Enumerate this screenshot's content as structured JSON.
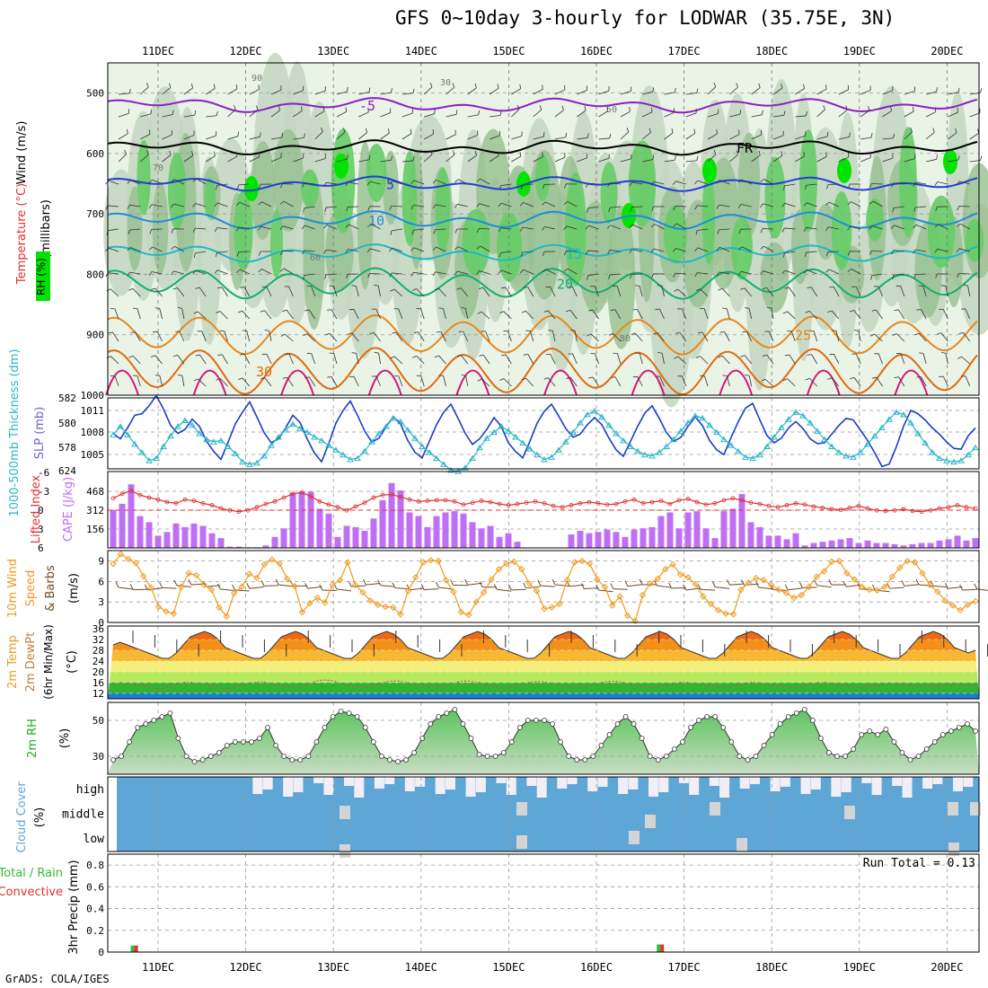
{
  "title": "GFS 0~10day 3-hourly for LODWAR (35.75E, 3N)",
  "credit": "GrADS: COLA/IGES",
  "dates": [
    "11DEC",
    "12DEC",
    "13DEC",
    "14DEC",
    "15DEC",
    "16DEC",
    "17DEC",
    "18DEC",
    "19DEC",
    "20DEC"
  ],
  "colors": {
    "rh_light": "#e9f3e6",
    "rh_mid": "#c3d6bf",
    "rh_dark": "#97bf90",
    "rh_green": "#66cc66",
    "rh_bright": "#00e400",
    "slp": "#1a3ec8",
    "thickness": "#2ab6c8",
    "cape": "#bf6ff5",
    "lifted_index": "#e03030",
    "wind_speed": "#ef9a1e",
    "wind_barb": "#6e4b28",
    "cloud": "#5ea6d6",
    "cloud_clear": "#f1eef6",
    "cloud_gray": "#d4d4d4",
    "precip_rain": "#33bb33",
    "precip_conv": "#e03030"
  },
  "chart_data": [
    {
      "type": "contour",
      "panel": "upper_air",
      "ylabel": "(millibars)",
      "variables_label": {
        "wind": "Wind (m/s)",
        "temp": "Temperature (°C)",
        "rh": "RH (%)"
      },
      "yaxis": {
        "labels": [
          "500",
          "600",
          "700",
          "800",
          "900",
          "1000"
        ],
        "range": [
          450,
          1000
        ]
      },
      "temp_contours": [
        {
          "label": "-5",
          "level_mb": 520,
          "color": "#8e1ec4"
        },
        {
          "label": "FR",
          "level_mb": 590,
          "color": "#000000"
        },
        {
          "label": "5",
          "level_mb": 650,
          "color": "#1f3fd8"
        },
        {
          "label": "10",
          "level_mb": 710,
          "color": "#1c8ed8"
        },
        {
          "label": "15",
          "level_mb": 765,
          "color": "#1fb8c8"
        },
        {
          "label": "20",
          "level_mb": 815,
          "color": "#10b070"
        },
        {
          "label": "25",
          "level_mb": 900,
          "color": "#e8881a"
        },
        {
          "label": "30",
          "level_mb": 960,
          "color": "#e06a10"
        }
      ],
      "rh_labels": [
        "70",
        "50",
        "60",
        "30",
        "80",
        "90"
      ]
    },
    {
      "type": "line",
      "panel": "slp_thickness",
      "ylabel_left": "1000-500mb Thickness (dm)",
      "ylabel_right": "SLP (mb)",
      "left_ticks": [
        "582",
        "580",
        "578"
      ],
      "right_ticks": [
        "1011",
        "1008",
        "1005"
      ],
      "slp_range": [
        1003,
        1012
      ],
      "slp": [
        1007.5,
        1006.8,
        1008.2,
        1009.8,
        1010.0,
        1011.0,
        1012.3,
        1010.6,
        1008.5,
        1007.5,
        1008.0,
        1009.3,
        1008.4,
        1006.5,
        1005.2,
        1004.2,
        1006.4,
        1008.7,
        1010.2,
        1011.5,
        1009.6,
        1007.6,
        1006.3,
        1006.8,
        1008.2,
        1009.8,
        1008.9,
        1006.8,
        1005.0,
        1003.9,
        1006.2,
        1008.8,
        1010.4,
        1011.6,
        1009.8,
        1007.8,
        1006.4,
        1006.9,
        1008.4,
        1009.6,
        1008.7,
        1006.6,
        1005.1,
        1004.4,
        1006.5,
        1008.6,
        1010.2,
        1011.2,
        1009.4,
        1007.5,
        1006.1,
        1006.8,
        1008.0,
        1009.5,
        1008.4,
        1006.3,
        1005.2,
        1004.4,
        1006.5,
        1008.8,
        1010.3,
        1011.2,
        1009.7,
        1008.1,
        1007.0,
        1007.4,
        1008.6,
        1009.5,
        1008.6,
        1006.9,
        1005.4,
        1004.6,
        1006.5,
        1008.4,
        1010.1,
        1011.0,
        1009.4,
        1007.6,
        1006.5,
        1007.0,
        1008.4,
        1009.6,
        1008.5,
        1006.6,
        1005.4,
        1004.8,
        1007.0,
        1009.0,
        1010.7,
        1011.3,
        1009.2,
        1007.2,
        1006.3,
        1006.9,
        1008.2,
        1009.0,
        1008.1,
        1006.8,
        1006.2,
        1006.3,
        1007.4,
        1008.5,
        1009.4,
        1009.2,
        1007.9,
        1006.6,
        1005.0,
        1003.3,
        1003.6,
        1005.8,
        1008.4,
        1010.4,
        1010.0,
        1009.2,
        1008.2,
        1007.4,
        1006.4,
        1005.6,
        1005.5,
        1007.2,
        1008.2
      ],
      "thickness_range": [
        577,
        583
      ],
      "thickness": [
        579.9,
        580.6,
        579.9,
        579.1,
        578.4,
        577.7,
        577.9,
        578.9,
        579.8,
        580.6,
        581.1,
        580.7,
        580.0,
        579.5,
        579.3,
        579.4,
        578.9,
        578.3,
        577.6,
        577.4,
        577.5,
        578.1,
        579.0,
        579.7,
        580.3,
        580.8,
        580.4,
        580.1,
        579.7,
        579.4,
        579.0,
        578.6,
        578.2,
        577.8,
        577.9,
        578.5,
        579.3,
        580.0,
        580.6,
        581.3,
        581.0,
        580.3,
        579.6,
        578.9,
        578.4,
        577.9,
        577.4,
        576.9,
        576.8,
        577.1,
        577.9,
        578.8,
        579.6,
        580.1,
        580.6,
        580.2,
        579.7,
        579.2,
        578.7,
        578.2,
        577.8,
        578.0,
        578.6,
        579.3,
        580.1,
        580.9,
        581.6,
        581.9,
        581.4,
        580.7,
        580.0,
        579.4,
        578.9,
        578.5,
        578.2,
        578.1,
        578.4,
        578.9,
        579.5,
        580.2,
        580.9,
        581.5,
        581.3,
        580.7,
        580.1,
        579.5,
        579.0,
        578.5,
        578.0,
        577.9,
        578.2,
        578.9,
        579.7,
        580.5,
        581.2,
        581.8,
        581.5,
        580.9,
        580.2,
        579.5,
        578.9,
        578.4,
        578.1,
        578.0,
        578.4,
        579.1,
        579.8,
        580.5,
        581.2,
        581.8,
        581.6,
        580.9,
        580.0,
        579.2,
        578.4,
        577.9,
        577.7,
        577.6,
        577.7,
        578.2,
        578.8
      ]
    },
    {
      "type": "bar",
      "panel": "cape_li",
      "ylabel_left": "Lifted Index",
      "ylabel_right": "CAPE (J/kg)",
      "left_ticks": [
        "-6",
        "-3",
        "0",
        "3",
        "6"
      ],
      "right_ticks": [
        "624",
        "468",
        "312",
        "156"
      ],
      "cape_range": [
        0,
        624
      ],
      "cape": [
        312,
        360,
        520,
        260,
        210,
        100,
        130,
        200,
        170,
        200,
        180,
        120,
        80,
        10,
        10,
        5,
        5,
        20,
        90,
        160,
        450,
        460,
        460,
        320,
        280,
        90,
        180,
        170,
        140,
        240,
        390,
        530,
        470,
        290,
        260,
        170,
        260,
        290,
        300,
        280,
        210,
        160,
        180,
        90,
        120,
        50,
        0,
        0,
        0,
        0,
        0,
        110,
        140,
        120,
        130,
        150,
        130,
        90,
        150,
        160,
        170,
        260,
        290,
        160,
        290,
        300,
        160,
        80,
        300,
        320,
        440,
        210,
        170,
        100,
        100,
        70,
        120,
        20,
        40,
        50,
        60,
        70,
        80,
        40,
        60,
        40,
        40,
        30,
        20,
        30,
        40,
        40,
        60,
        70,
        100,
        60,
        80
      ],
      "li_range": [
        -6,
        6
      ],
      "lifted_index": [
        -1.8,
        -2.5,
        -3.0,
        -2.3,
        -1.9,
        -1.6,
        -1.2,
        -1.0,
        -1.6,
        -1.4,
        -1.0,
        -0.7,
        -0.2,
        0.1,
        0.3,
        0.1,
        -0.4,
        -0.9,
        -1.3,
        -1.9,
        -2.5,
        -2.7,
        -2.1,
        -1.3,
        -0.8,
        -0.4,
        0.1,
        -0.5,
        -1.1,
        -1.9,
        -2.3,
        -2.4,
        -2.0,
        -1.6,
        -1.3,
        -1.4,
        -1.5,
        -1.5,
        -1.3,
        -0.8,
        -1.1,
        -1.4,
        -1.2,
        -0.9,
        -0.7,
        -0.9,
        -1.1,
        -1.3,
        -1.0,
        -0.6,
        -0.4,
        -0.7,
        -1.0,
        -1.2,
        -1.0,
        -0.8,
        -0.9,
        -1.3,
        -1.6,
        -1.0,
        -1.2,
        -1.4,
        -0.9,
        -1.5,
        -1.7,
        -1.2,
        -0.8,
        -1.0,
        -1.5,
        -1.8,
        -1.5,
        -1.1,
        -0.9,
        -0.6,
        -0.4,
        -0.7,
        -1.0,
        -0.8,
        -0.5,
        -0.3,
        -0.1,
        0.0,
        -0.3,
        -0.6,
        -0.2,
        0.1,
        0.2,
        0.1,
        -0.1,
        0.2,
        0.3,
        0.1,
        -0.2,
        -0.4,
        -0.7,
        -0.4,
        -0.2
      ]
    },
    {
      "type": "line",
      "panel": "wind10m",
      "ylabel": "10m Wind Speed & Barbs (m/s)",
      "ticks": [
        "9",
        "6",
        "3",
        "0"
      ],
      "range": [
        0,
        10
      ],
      "speed": [
        8.6,
        10.0,
        9.3,
        8.7,
        6.8,
        5.1,
        2.3,
        1.6,
        1.3,
        5.2,
        7.2,
        6.9,
        5.5,
        4.8,
        2.2,
        0.9,
        4.3,
        5.2,
        7.1,
        6.5,
        8.5,
        9.2,
        8.6,
        6.4,
        5.3,
        1.5,
        2.8,
        3.6,
        2.9,
        5.5,
        6.2,
        8.8,
        5.5,
        4.4,
        3.2,
        2.6,
        2.3,
        2.2,
        1.2,
        4.6,
        6.6,
        8.8,
        9.1,
        9.0,
        6.2,
        4.5,
        1.5,
        1.1,
        3.0,
        4.4,
        6.3,
        7.8,
        8.6,
        8.9,
        7.8,
        5.7,
        4.6,
        2.0,
        2.2,
        2.7,
        6.2,
        8.8,
        9.0,
        8.6,
        6.3,
        5.2,
        2.5,
        3.8,
        1.0,
        0.2,
        4.0,
        5.7,
        6.4,
        7.8,
        8.5,
        7.0,
        6.6,
        5.6,
        3.8,
        2.7,
        1.8,
        1.3,
        1.2,
        4.8,
        5.8,
        6.5,
        6.2,
        5.5,
        4.8,
        4.3,
        3.6,
        4.0,
        5.2,
        6.7,
        7.5,
        8.9,
        9.0,
        7.2,
        6.3,
        5.2,
        4.8,
        4.7,
        5.2,
        6.7,
        8.0,
        9.0,
        8.8,
        7.2,
        5.5,
        4.5,
        3.2,
        2.5,
        1.8,
        2.6,
        3.1
      ]
    },
    {
      "type": "area",
      "panel": "temp2m",
      "ylabel": "2m Temp 2m DewPt (6hr Min/Max) (°C)",
      "ticks": [
        "36",
        "32",
        "28",
        "24",
        "20",
        "16",
        "12"
      ],
      "range": [
        10,
        37
      ],
      "temperature": [
        30,
        31,
        30,
        29,
        28,
        27,
        26,
        25,
        25,
        27,
        30,
        33,
        34,
        35,
        34,
        32,
        29,
        28,
        27,
        26,
        25,
        25,
        27,
        30,
        33,
        34,
        35,
        34,
        32,
        29,
        28,
        27,
        26,
        25,
        25,
        27,
        30,
        33,
        34,
        35,
        34,
        32,
        29,
        28,
        27,
        26,
        25,
        25,
        27,
        30,
        33,
        34,
        35,
        34,
        32,
        29,
        28,
        27,
        26,
        25,
        25,
        27,
        30,
        33,
        34,
        35,
        34,
        32,
        29,
        28,
        27,
        26,
        25,
        25,
        27,
        30,
        33,
        34,
        35,
        34,
        32,
        29,
        28,
        27,
        26,
        25,
        25,
        27,
        30,
        33,
        34,
        35,
        34,
        32,
        29,
        28,
        27,
        26,
        25,
        25,
        27,
        30,
        33,
        34,
        35,
        34,
        32,
        29,
        28,
        27,
        26,
        25,
        25,
        27,
        30,
        33,
        34,
        35,
        34,
        32,
        29,
        28,
        27,
        28
      ],
      "dewpoint": [
        15.8,
        16.0,
        15.9,
        15.7,
        14.8,
        14.2,
        13.8,
        14.1,
        15.3,
        16.0,
        16.2,
        16.0,
        15.6,
        15.0,
        14.2,
        13.8,
        14.0,
        15.0,
        15.8,
        16.2,
        16.3,
        15.9,
        15.2,
        14.4,
        14.1,
        14.5,
        15.6,
        16.5,
        17.0,
        16.8,
        16.2,
        15.4,
        14.6,
        14.2,
        14.4,
        15.3,
        16.1,
        16.5,
        16.6,
        16.2,
        15.6,
        14.9,
        14.3,
        14.1,
        14.6,
        15.6,
        16.3,
        16.6,
        16.4,
        15.9,
        15.1,
        14.4,
        14.0,
        14.2,
        15.1,
        15.9,
        16.3,
        16.4,
        16.1,
        15.5,
        14.8,
        14.2,
        14.0,
        14.4,
        15.3,
        16.0,
        16.4,
        16.5,
        16.1,
        15.5,
        14.8,
        14.3,
        14.2,
        14.7,
        15.5,
        16.0,
        16.2,
        16.0,
        15.6,
        15.0,
        14.4,
        14.1,
        14.3,
        15.0,
        15.7,
        16.1,
        16.0,
        15.6,
        15.1,
        14.6,
        14.2,
        14.3,
        14.9,
        15.6,
        16.0,
        16.1,
        15.8,
        15.3,
        14.7,
        14.3,
        14.2,
        14.5,
        15.1,
        15.6,
        15.8,
        15.6,
        15.2,
        14.8,
        14.5,
        14.6,
        15.0,
        15.4,
        15.6,
        15.5,
        15.2,
        15.1
      ]
    },
    {
      "type": "area",
      "panel": "rh2m",
      "ylabel": "2m RH (%)",
      "ticks": [
        "50",
        "30"
      ],
      "range": [
        20,
        60
      ],
      "rh": [
        28,
        30,
        38,
        46,
        48,
        50,
        52,
        54,
        40,
        30,
        27,
        28,
        30,
        32,
        36,
        38,
        38,
        38,
        40,
        46,
        36,
        30,
        28,
        28,
        30,
        38,
        46,
        52,
        55,
        54,
        52,
        46,
        38,
        30,
        28,
        27,
        28,
        32,
        40,
        48,
        52,
        54,
        56,
        48,
        40,
        31,
        30,
        30,
        32,
        38,
        46,
        50,
        50,
        50,
        48,
        38,
        30,
        28,
        28,
        30,
        36,
        42,
        48,
        52,
        48,
        40,
        30,
        28,
        30,
        34,
        38,
        46,
        50,
        52,
        52,
        46,
        38,
        30,
        28,
        30,
        36,
        42,
        48,
        52,
        54,
        56,
        50,
        40,
        32,
        30,
        30,
        34,
        42,
        44,
        42,
        45,
        38,
        32,
        28,
        30,
        34,
        38,
        42,
        44,
        46,
        48,
        44
      ]
    },
    {
      "type": "heatmap",
      "panel": "cloud",
      "ylabel": "Cloud Cover (%)",
      "rows": [
        "high",
        "middle",
        "low"
      ]
    },
    {
      "type": "bar",
      "panel": "precip",
      "ylabel": "3hr Precip (mm)",
      "legend": [
        "Total / Rain",
        "Convective"
      ],
      "run_total_label": "Run Total = 0.13",
      "ticks": [
        "0.8",
        "0.6",
        "0.4",
        "0.2",
        "0"
      ],
      "range": [
        0,
        0.9
      ],
      "events": [
        {
          "date_index": 0,
          "offset_steps": -1,
          "value": 0.06
        },
        {
          "date_index": 6,
          "offset_steps": -1,
          "value": 0.07
        }
      ]
    }
  ]
}
